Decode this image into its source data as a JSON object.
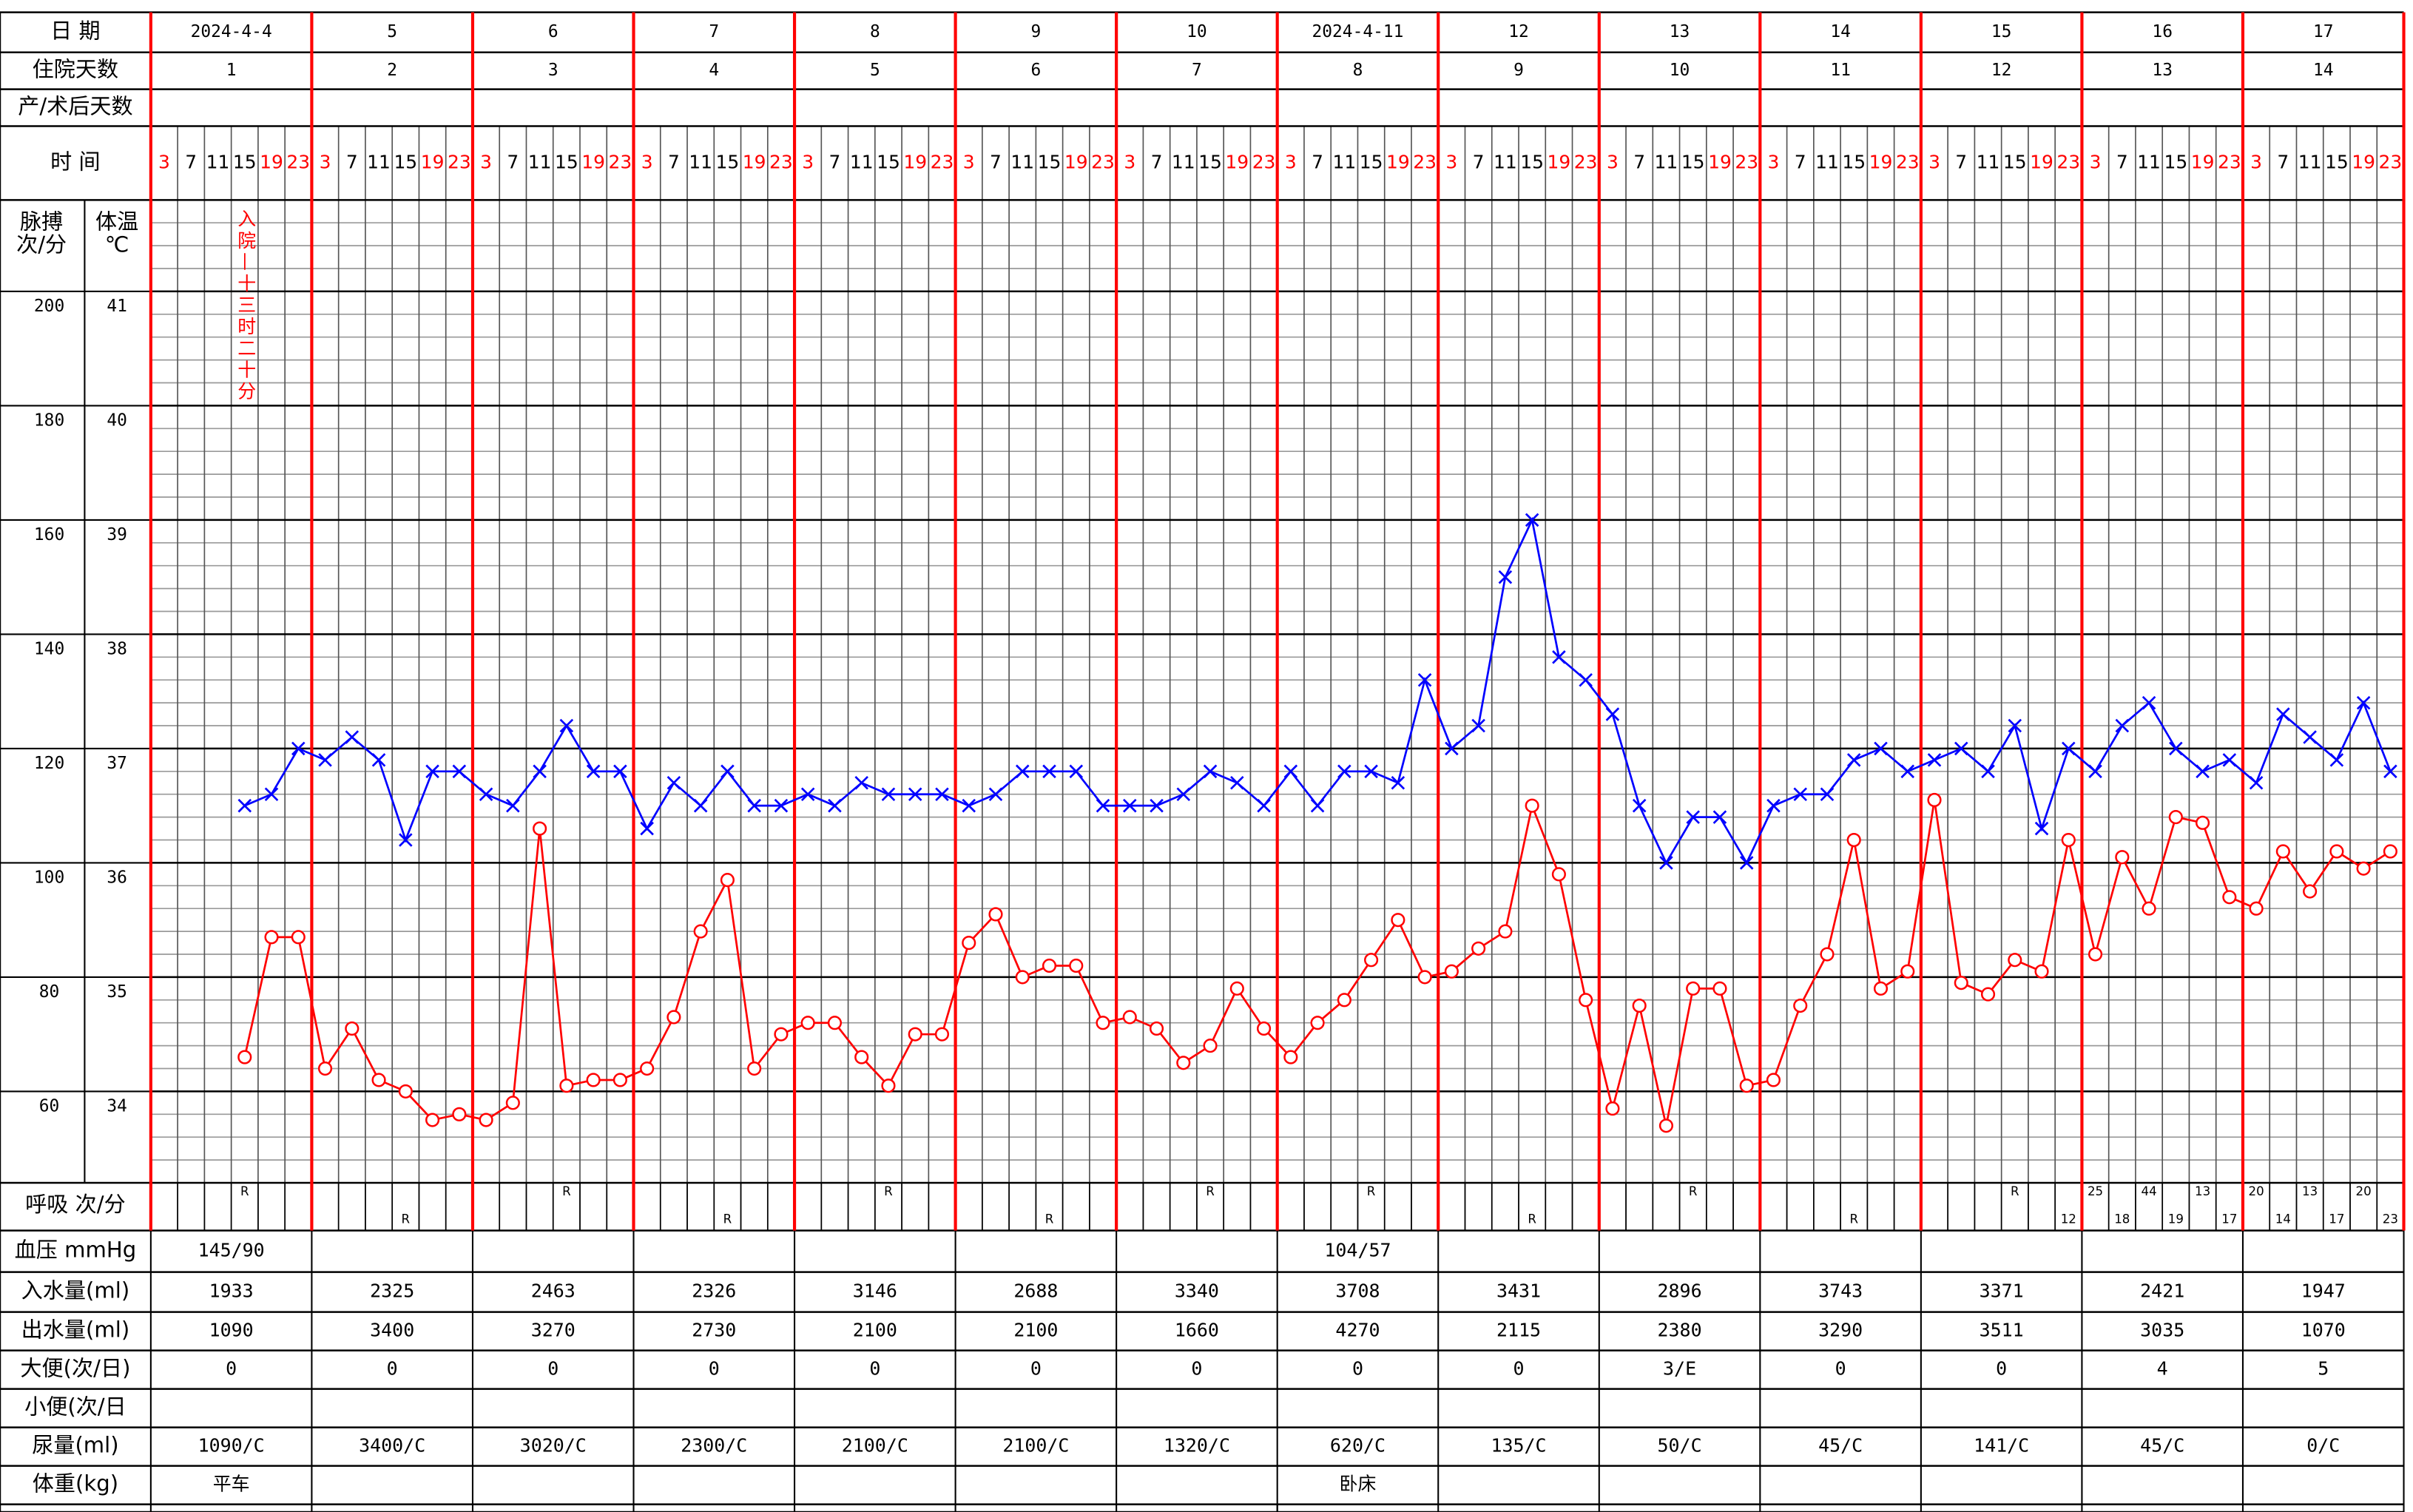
{
  "header": {
    "date_label": "日 期",
    "dates": [
      "2024-4-4",
      "5",
      "6",
      "7",
      "8",
      "9",
      "10",
      "2024-4-11",
      "12",
      "13",
      "14",
      "15",
      "16",
      "17"
    ],
    "stay_label": "住院天数",
    "stay_days": [
      1,
      2,
      3,
      4,
      5,
      6,
      7,
      8,
      9,
      10,
      11,
      12,
      13,
      14
    ],
    "postop_label": "产/术后天数",
    "time_label": "时 间"
  },
  "chart_data": {
    "type": "line",
    "categories": [
      3,
      7,
      11,
      15,
      19,
      23,
      3,
      7,
      11,
      15,
      19,
      23,
      3,
      7,
      11,
      15,
      19,
      23,
      3,
      7,
      11,
      15,
      19,
      23,
      3,
      7,
      11,
      15,
      19,
      23,
      3,
      7,
      11,
      15,
      19,
      23,
      3,
      7,
      11,
      15,
      19,
      23,
      3,
      7,
      11,
      15,
      19,
      23,
      3,
      7,
      11,
      15,
      19,
      23,
      3,
      7,
      11,
      15,
      19,
      23,
      3,
      7,
      11,
      15,
      19,
      23,
      3,
      7,
      11,
      15,
      19,
      23,
      3,
      7,
      11,
      15,
      19,
      23,
      3,
      7,
      11,
      15,
      19,
      23
    ],
    "ylabel": [
      "脉搏",
      "次/分"
    ],
    "y2label": [
      "体温",
      "℃"
    ],
    "ylim": [
      44,
      216
    ],
    "yticks": [
      60,
      80,
      100,
      120,
      140,
      160,
      180,
      200
    ],
    "y2lim": [
      33.2,
      41.8
    ],
    "y2ticks": [
      34,
      35,
      36,
      37,
      38,
      39,
      40,
      41
    ],
    "grid": true,
    "annotation": "入院—十三时二十分",
    "annotation_color": "#ff0000",
    "series": [
      {
        "name": "体温",
        "color": "#0000ff",
        "marker": "x",
        "axis": "y2",
        "values": [
          null,
          null,
          null,
          36.5,
          36.6,
          37.0,
          36.9,
          37.1,
          36.9,
          36.2,
          36.8,
          36.8,
          36.6,
          36.5,
          36.8,
          37.2,
          36.8,
          36.8,
          36.3,
          36.7,
          36.5,
          36.8,
          36.5,
          36.5,
          36.6,
          36.5,
          36.7,
          36.6,
          36.6,
          36.6,
          36.5,
          36.6,
          36.8,
          36.8,
          36.8,
          36.5,
          36.5,
          36.5,
          36.6,
          36.8,
          36.7,
          36.5,
          36.8,
          36.5,
          36.8,
          36.8,
          36.7,
          37.6,
          37.0,
          37.2,
          38.5,
          39.0,
          37.8,
          37.6,
          37.3,
          36.5,
          36.0,
          36.4,
          36.4,
          36.0,
          36.5,
          36.6,
          36.6,
          36.9,
          37.0,
          36.8,
          36.9,
          37.0,
          36.8,
          37.2,
          36.3,
          37.0,
          36.8,
          37.2,
          37.4,
          37.0,
          36.8,
          36.9,
          36.7,
          37.3,
          37.1,
          36.9,
          37.4,
          36.8
        ]
      },
      {
        "name": "脉搏",
        "color": "#ff0000",
        "marker": "circle",
        "axis": "y",
        "values": [
          null,
          null,
          null,
          66,
          87,
          87,
          64,
          71,
          62,
          60,
          55,
          56,
          55,
          58,
          106,
          61,
          62,
          62,
          64,
          73,
          88,
          97,
          64,
          70,
          72,
          72,
          66,
          61,
          70,
          70,
          86,
          91,
          80,
          82,
          82,
          72,
          73,
          71,
          65,
          68,
          78,
          71,
          66,
          72,
          76,
          83,
          90,
          80,
          81,
          85,
          88,
          110,
          98,
          76,
          57,
          75,
          54,
          78,
          78,
          61,
          62,
          75,
          84,
          104,
          78,
          81,
          111,
          79,
          77,
          83,
          81,
          104,
          84,
          101,
          92,
          108,
          107,
          94,
          92,
          102,
          95,
          102,
          99,
          102
        ]
      }
    ]
  },
  "table": {
    "respiration": {
      "label": "呼吸 次/分",
      "upper": [
        null,
        null,
        null,
        "R",
        null,
        null,
        null,
        null,
        null,
        null,
        null,
        null,
        null,
        null,
        null,
        "R",
        null,
        null,
        null,
        null,
        null,
        null,
        null,
        null,
        null,
        null,
        null,
        "R",
        null,
        null,
        null,
        null,
        null,
        null,
        null,
        null,
        null,
        null,
        null,
        "R",
        null,
        null,
        null,
        null,
        null,
        "R",
        null,
        null,
        null,
        null,
        null,
        null,
        null,
        null,
        null,
        null,
        null,
        "R",
        null,
        null,
        null,
        null,
        null,
        null,
        null,
        null,
        null,
        null,
        null,
        "R",
        null,
        null,
        25,
        null,
        44,
        null,
        13,
        null,
        20,
        null,
        13,
        null,
        20,
        null
      ],
      "lower": [
        null,
        null,
        null,
        null,
        null,
        null,
        null,
        null,
        null,
        "R",
        null,
        null,
        null,
        null,
        null,
        null,
        null,
        null,
        null,
        null,
        null,
        "R",
        null,
        null,
        null,
        null,
        null,
        null,
        null,
        null,
        null,
        null,
        null,
        "R",
        null,
        null,
        null,
        null,
        null,
        null,
        null,
        null,
        null,
        null,
        null,
        null,
        null,
        null,
        null,
        null,
        null,
        "R",
        null,
        null,
        null,
        null,
        null,
        null,
        null,
        null,
        null,
        null,
        null,
        "R",
        null,
        null,
        null,
        null,
        null,
        null,
        null,
        12,
        null,
        18,
        null,
        19,
        null,
        17,
        null,
        14,
        null,
        17,
        null,
        23
      ]
    },
    "rows": [
      {
        "label": "血压 mmHg",
        "cells": [
          "145/90",
          null,
          null,
          null,
          null,
          null,
          null,
          "104/57",
          null,
          null,
          null,
          null,
          null,
          null
        ]
      },
      {
        "label": "入水量(ml)",
        "cells": [
          1933,
          2325,
          2463,
          2326,
          3146,
          2688,
          3340,
          3708,
          3431,
          2896,
          3743,
          3371,
          2421,
          1947
        ]
      },
      {
        "label": "出水量(ml)",
        "cells": [
          1090,
          3400,
          3270,
          2730,
          2100,
          2100,
          1660,
          4270,
          2115,
          2380,
          3290,
          3511,
          3035,
          1070
        ]
      },
      {
        "label": "大便(次/日)",
        "cells": [
          0,
          0,
          0,
          0,
          0,
          0,
          0,
          0,
          0,
          "3/E",
          0,
          0,
          4,
          5
        ]
      },
      {
        "label": "小便(次/日",
        "cells": [
          null,
          null,
          null,
          null,
          null,
          null,
          null,
          null,
          null,
          null,
          null,
          null,
          null,
          null
        ]
      },
      {
        "label": "尿量(ml)",
        "cells": [
          "1090/C",
          "3400/C",
          "3020/C",
          "2300/C",
          "2100/C",
          "2100/C",
          "1320/C",
          "620/C",
          "135/C",
          "50/C",
          "45/C",
          "141/C",
          "45/C",
          "0/C"
        ]
      },
      {
        "label": "体重(kg)",
        "cells": [
          "平车",
          null,
          null,
          null,
          null,
          null,
          null,
          "卧床",
          null,
          null,
          null,
          null,
          null,
          null
        ]
      }
    ]
  }
}
